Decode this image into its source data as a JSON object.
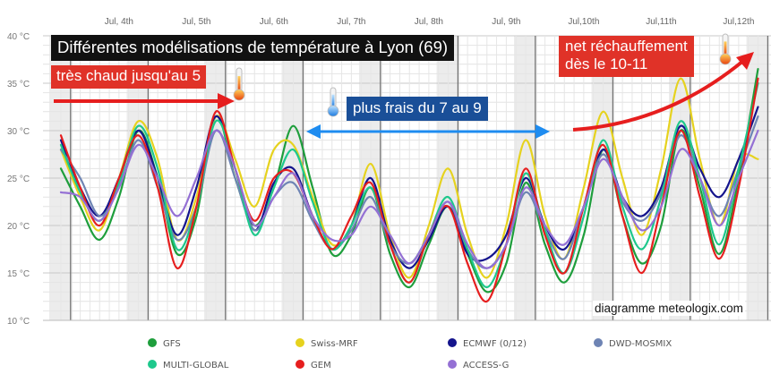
{
  "chart_data": {
    "type": "line",
    "title": "Différentes modélisations de température à Lyon (69)",
    "ylim": [
      10,
      40
    ],
    "y_ticks": [
      "10 °C",
      "15 °C",
      "20 °C",
      "25 °C",
      "30 °C",
      "35 °C",
      "40 °C"
    ],
    "x_ticks": [
      "Jul, 4th",
      "Jul, 5th",
      "Jul, 6th",
      "Jul, 7th",
      "Jul, 8th",
      "Jul, 9th",
      "Jul,10th",
      "Jul,11th",
      "Jul,12th"
    ],
    "x": [
      0,
      0.25,
      0.5,
      0.75,
      1,
      1.25,
      1.5,
      1.75,
      2,
      2.25,
      2.5,
      2.75,
      3,
      3.25,
      3.5,
      3.75,
      4,
      4.25,
      4.5,
      4.75,
      5,
      5.25,
      5.5,
      5.75,
      6,
      6.25,
      6.5,
      6.75,
      7,
      7.25,
      7.5,
      7.75,
      8,
      8.25,
      8.5,
      8.75,
      9
    ],
    "series": [
      {
        "name": "GFS",
        "color": "#1e9e3c",
        "values": [
          26,
          22,
          18.5,
          23,
          30,
          25,
          17,
          21,
          31.5,
          25,
          20,
          24,
          30.5,
          24,
          17,
          19,
          24,
          17,
          13.5,
          18,
          22,
          17,
          13,
          16,
          24.5,
          18,
          14,
          19,
          28,
          21,
          16,
          20,
          30,
          24,
          17,
          25,
          36.5
        ]
      },
      {
        "name": "Swiss-MRF",
        "color": "#e6d21e",
        "values": [
          28,
          23,
          19.5,
          25,
          31,
          27,
          18.5,
          23,
          31.5,
          27,
          22,
          28,
          28.5,
          23,
          18,
          20,
          26.5,
          19,
          14.5,
          20,
          26,
          19,
          14.5,
          20,
          29,
          21,
          16.5,
          24,
          32,
          25,
          19,
          26,
          35.5,
          27,
          20,
          27,
          27
        ]
      },
      {
        "name": "ECMWF (0/12)",
        "color": "#14148c",
        "values": [
          29,
          24,
          21,
          25,
          30,
          25,
          19,
          24,
          31.5,
          26,
          19.5,
          24.5,
          26,
          21,
          17.5,
          20,
          25,
          18.5,
          15.5,
          18.5,
          22,
          17,
          16.5,
          19,
          25,
          20,
          17.5,
          22,
          28,
          23,
          21,
          24,
          30.5,
          26,
          23,
          27,
          32.5
        ]
      },
      {
        "name": "DWD-MOSMIX",
        "color": "#6e84b4",
        "values": [
          28,
          25,
          21,
          24,
          29,
          24,
          18.5,
          22,
          30,
          25,
          19.5,
          23,
          24.5,
          20.5,
          17.5,
          19.5,
          23,
          18,
          16,
          19,
          22.5,
          17.5,
          15.5,
          18,
          23.5,
          19.5,
          16.5,
          22,
          27.5,
          22.5,
          20.5,
          23.5,
          29.5,
          25,
          21,
          26,
          31.5
        ]
      },
      {
        "name": "MULTI-GLOBAL",
        "color": "#1ec88c",
        "values": [
          28.5,
          23.5,
          20.5,
          24.5,
          30.5,
          26,
          17.5,
          22,
          31,
          26,
          19,
          24,
          28,
          22.5,
          17.5,
          20,
          24,
          18,
          14,
          19,
          23,
          17.5,
          13.5,
          18,
          25.5,
          19.5,
          15,
          21,
          29,
          22,
          17.5,
          23,
          31,
          25,
          18,
          26,
          35
        ]
      },
      {
        "name": "GEM",
        "color": "#e61e1e",
        "values": [
          29.5,
          24,
          20,
          25,
          29.5,
          24,
          15.5,
          22,
          32,
          26,
          20.5,
          25,
          25.5,
          21,
          17.5,
          21,
          24.5,
          18,
          14,
          19,
          22,
          16,
          12,
          18,
          26,
          19,
          15,
          22,
          28.5,
          21,
          15,
          22,
          30,
          23,
          16.5,
          24,
          35.5
        ]
      },
      {
        "name": "ACCESS-G",
        "color": "#9470d4",
        "values": [
          23.5,
          23,
          20.5,
          24,
          28.5,
          25,
          21,
          25,
          30,
          26,
          20,
          23,
          25.5,
          21,
          18.5,
          19,
          22,
          19,
          16,
          19,
          22.5,
          18,
          15.5,
          18,
          24,
          20,
          18,
          22,
          27,
          23,
          19.5,
          22,
          28,
          25,
          20,
          25,
          30
        ]
      }
    ],
    "legend": [
      "GFS",
      "Swiss-MRF",
      "ECMWF (0/12)",
      "DWD-MOSMIX",
      "MULTI-GLOBAL",
      "GEM",
      "ACCESS-G"
    ],
    "legend_position": "bottom",
    "grid": true
  },
  "annotations": {
    "hot": "très chaud jusqu'au 5",
    "cool": "plus frais du 7 au 9",
    "warm_line1": "net réchauffement",
    "warm_line2": "dès le 10-11",
    "credit": "diagramme meteologix.com"
  },
  "colors": {
    "annotation_red": "#e03228",
    "annotation_blue": "#1a4f98",
    "arrow_red": "#e61e1e",
    "arrow_blue": "#1e8cf0"
  },
  "icons": [
    "thermometer-hot-icon",
    "thermometer-cold-icon"
  ]
}
